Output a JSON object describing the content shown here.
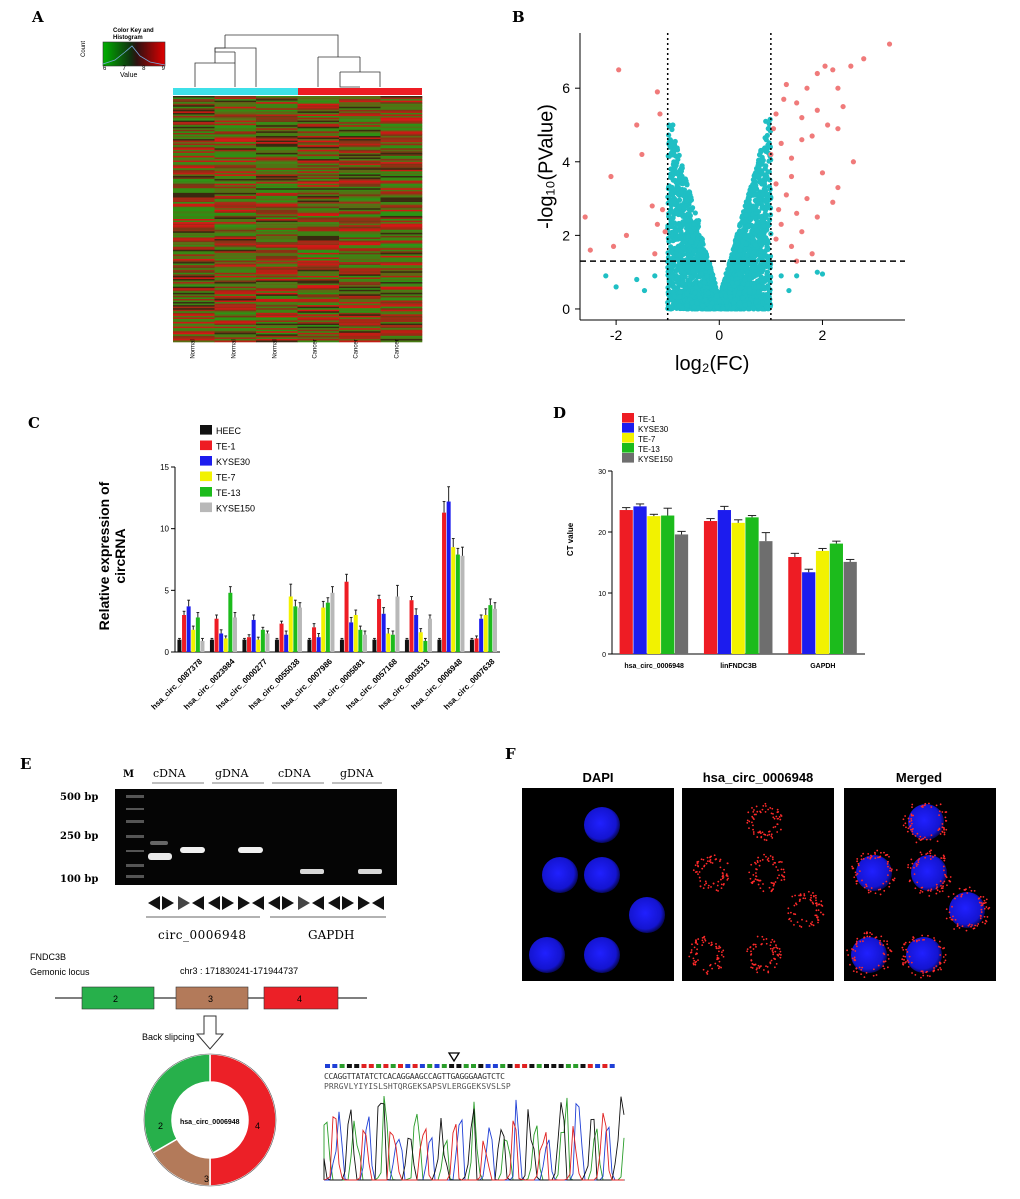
{
  "panels": {
    "a": "A",
    "b": "B",
    "c": "C",
    "d": "D",
    "e": "E",
    "f": "F"
  },
  "heatmap": {
    "colorkey_title": "Color Key and Histogram",
    "count_label": "Count",
    "value_label": "Value",
    "colorkey_ticks": [
      "6",
      "7",
      "8",
      "9"
    ],
    "sample_labels": [
      "Normal",
      "Normal",
      "Normal",
      "Cancer",
      "Cancer",
      "Cancer"
    ],
    "group_colors": [
      "#3ee0e8",
      "#ee1c24"
    ]
  },
  "chart_data": [
    {
      "type": "scatter",
      "panel": "B",
      "xlabel": "log₂(FC)",
      "ylabel": "-log₁₀(PValue)",
      "xlim": [
        -2.7,
        3.6
      ],
      "ylim": [
        -0.3,
        7.5
      ],
      "xticks": [
        "-2",
        "0",
        "2"
      ],
      "yticks": [
        "0",
        "2",
        "4",
        "6"
      ],
      "thresholds": {
        "log2fc": [
          -1,
          1
        ],
        "pvalue_line": 1.3
      },
      "colors": {
        "significant": "#f07a7a",
        "not_significant": "#1fbfc4"
      },
      "significant_points": [
        [
          -2.6,
          2.5
        ],
        [
          -2.5,
          1.6
        ],
        [
          -1.95,
          6.5
        ],
        [
          -2.1,
          3.6
        ],
        [
          -2.05,
          1.7
        ],
        [
          -1.8,
          2.0
        ],
        [
          -1.6,
          5.0
        ],
        [
          -1.5,
          4.2
        ],
        [
          -1.3,
          2.8
        ],
        [
          -1.2,
          2.3
        ],
        [
          -1.2,
          5.9
        ],
        [
          -1.15,
          5.3
        ],
        [
          -1.1,
          2.7
        ],
        [
          -1.05,
          2.1
        ],
        [
          -1.25,
          1.5
        ],
        [
          3.3,
          7.2
        ],
        [
          2.8,
          6.8
        ],
        [
          2.55,
          6.6
        ],
        [
          2.2,
          6.5
        ],
        [
          2.05,
          6.6
        ],
        [
          1.9,
          6.4
        ],
        [
          2.3,
          6.0
        ],
        [
          2.4,
          5.5
        ],
        [
          2.3,
          4.9
        ],
        [
          2.6,
          4.0
        ],
        [
          2.3,
          3.3
        ],
        [
          2.0,
          3.7
        ],
        [
          2.2,
          2.9
        ],
        [
          1.9,
          2.5
        ],
        [
          1.6,
          2.1
        ],
        [
          1.8,
          1.5
        ],
        [
          1.5,
          1.3
        ],
        [
          1.4,
          1.7
        ],
        [
          1.2,
          2.3
        ],
        [
          1.1,
          1.9
        ],
        [
          1.3,
          3.1
        ],
        [
          1.1,
          3.4
        ],
        [
          1.4,
          4.1
        ],
        [
          1.2,
          4.5
        ],
        [
          1.5,
          5.6
        ],
        [
          1.3,
          6.1
        ],
        [
          1.1,
          5.3
        ],
        [
          1.7,
          6.0
        ],
        [
          1.6,
          5.2
        ],
        [
          1.8,
          4.7
        ],
        [
          1.9,
          5.4
        ],
        [
          1.25,
          5.7
        ],
        [
          1.05,
          4.9
        ],
        [
          1.4,
          3.6
        ],
        [
          1.15,
          2.7
        ],
        [
          1.6,
          4.6
        ],
        [
          1.7,
          3.0
        ],
        [
          1.0,
          4.2
        ],
        [
          1.5,
          2.6
        ],
        [
          2.1,
          5.0
        ]
      ],
      "nonsignificant_points": [
        [
          -2.2,
          0.9
        ],
        [
          -2.0,
          0.6
        ],
        [
          -1.6,
          0.8
        ],
        [
          -1.45,
          0.5
        ],
        [
          -1.25,
          0.9
        ],
        [
          1.2,
          0.9
        ],
        [
          1.35,
          0.5
        ],
        [
          1.5,
          0.9
        ],
        [
          1.9,
          1.0
        ],
        [
          2.0,
          0.95
        ],
        [
          -0.9,
          5.0
        ],
        [
          -0.95,
          4.6
        ],
        [
          0.95,
          4.9
        ],
        [
          0.9,
          5.1
        ],
        [
          -0.4,
          2.4
        ],
        [
          0.4,
          2.3
        ]
      ]
    },
    {
      "type": "bar",
      "panel": "C",
      "ylabel": "Relative expression of circRNA",
      "ylim": [
        0,
        15
      ],
      "yticks": [
        "0",
        "5",
        "10",
        "15"
      ],
      "categories": [
        "hsa_circ_0087378",
        "hsa_circ_0023984",
        "hsa_circ_0000277",
        "hsa_circ_0055038",
        "hsa_circ_0007986",
        "hsa_circ_0005881",
        "hsa_circ_0057168",
        "hsa_circ_0003513",
        "hsa_circ_0006948",
        "hsa_circ_0007638"
      ],
      "series": [
        {
          "name": "HEEC",
          "color": "#111111",
          "values": [
            1,
            1,
            1,
            1,
            1,
            1,
            1,
            1,
            1,
            1
          ],
          "err": [
            0.1,
            0.1,
            0.1,
            0.1,
            0.1,
            0.1,
            0.1,
            0.1,
            0.1,
            0.1
          ]
        },
        {
          "name": "TE-1",
          "color": "#ee1c24",
          "values": [
            3.0,
            2.7,
            1.2,
            2.3,
            2.0,
            5.7,
            4.3,
            4.2,
            11.3,
            1.1
          ],
          "err": [
            0.3,
            0.3,
            0.2,
            0.2,
            0.3,
            0.6,
            0.3,
            0.3,
            0.9,
            0.2
          ]
        },
        {
          "name": "KYSE30",
          "color": "#1c1cee",
          "values": [
            3.7,
            1.5,
            2.6,
            1.4,
            1.2,
            2.4,
            3.1,
            3.0,
            12.2,
            2.7
          ],
          "err": [
            0.5,
            0.3,
            0.4,
            0.3,
            0.3,
            0.4,
            0.5,
            0.5,
            1.2,
            0.3
          ]
        },
        {
          "name": "TE-7",
          "color": "#f2f200",
          "values": [
            1.8,
            1.1,
            1.0,
            4.5,
            3.6,
            3.0,
            1.5,
            1.6,
            8.5,
            3.0
          ],
          "err": [
            0.3,
            0.2,
            0.2,
            1.0,
            0.5,
            0.4,
            0.4,
            0.3,
            0.7,
            0.5
          ]
        },
        {
          "name": "TE-13",
          "color": "#1cbb1c",
          "values": [
            2.8,
            4.8,
            1.8,
            3.7,
            4.0,
            1.8,
            1.4,
            0.9,
            7.9,
            3.8
          ],
          "err": [
            0.4,
            0.5,
            0.2,
            0.5,
            0.4,
            0.3,
            0.3,
            0.2,
            0.5,
            0.5
          ]
        },
        {
          "name": "KYSE150",
          "color": "#b8b8b8",
          "values": [
            0.9,
            2.8,
            1.5,
            3.6,
            4.8,
            1.4,
            4.5,
            2.7,
            7.8,
            3.5
          ],
          "err": [
            0.2,
            0.4,
            0.2,
            0.4,
            0.5,
            0.3,
            0.9,
            0.3,
            0.7,
            0.5
          ]
        }
      ]
    },
    {
      "type": "bar",
      "panel": "D",
      "ylabel": "CT value",
      "ylim": [
        0,
        30
      ],
      "yticks": [
        "0",
        "10",
        "20",
        "30"
      ],
      "categories": [
        "hsa_circ_0006948",
        "linFNDC3B",
        "GAPDH"
      ],
      "series": [
        {
          "name": "TE-1",
          "color": "#ee1c24",
          "values": [
            23.6,
            21.8,
            15.9
          ],
          "err": [
            0.4,
            0.4,
            0.6
          ]
        },
        {
          "name": "KYSE30",
          "color": "#1c1cee",
          "values": [
            24.2,
            23.6,
            13.4
          ],
          "err": [
            0.4,
            0.6,
            0.5
          ]
        },
        {
          "name": "TE-7",
          "color": "#f2f200",
          "values": [
            22.6,
            21.5,
            16.9
          ],
          "err": [
            0.3,
            0.5,
            0.4
          ]
        },
        {
          "name": "TE-13",
          "color": "#1cbb1c",
          "values": [
            22.7,
            22.4,
            18.1
          ],
          "err": [
            1.2,
            0.3,
            0.4
          ]
        },
        {
          "name": "KYSE150",
          "color": "#6e6e6e",
          "values": [
            19.6,
            18.5,
            15.1
          ],
          "err": [
            0.5,
            1.4,
            0.4
          ]
        }
      ]
    }
  ],
  "gel": {
    "marker_label": "M",
    "lane_groups": [
      "cDNA",
      "gDNA",
      "cDNA",
      "gDNA"
    ],
    "bp_labels": [
      "500 bp",
      "250 bp",
      "100 bp"
    ],
    "bottom_labels": [
      "circ_0006948",
      "GAPDH"
    ]
  },
  "locus": {
    "gene": "FNDC3B",
    "label": "Gemonic locus",
    "coords": "chr3 : 171830241-171944737",
    "exons": [
      {
        "n": "2",
        "color": "#27b04b"
      },
      {
        "n": "3",
        "color": "#b37a5a"
      },
      {
        "n": "4",
        "color": "#ec2027"
      }
    ],
    "back_splicing": "Back slipcing",
    "circle_label": "hsa_circ_0006948"
  },
  "sequence": {
    "bases": "CCAGGTTATATCTCACAGGAAGCCAGTTGAGGGAAGTCTC",
    "aa": "PRRGVLYIYISLSHTQRGEKSAPSVLERGGEKSVSLSP"
  },
  "fish": {
    "titles": [
      "DAPI",
      "hsa_circ_0006948",
      "Merged"
    ]
  }
}
